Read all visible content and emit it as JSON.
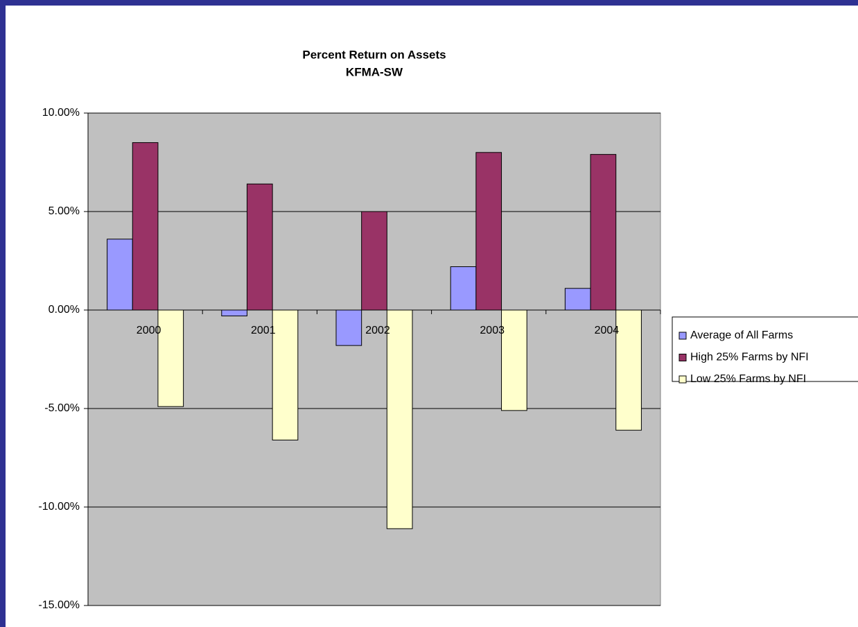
{
  "chart_data": {
    "type": "bar",
    "title": "Percent Return on Assets",
    "subtitle": "KFMA-SW",
    "categories": [
      "2000",
      "2001",
      "2002",
      "2003",
      "2004"
    ],
    "series": [
      {
        "name": "Average of All Farms",
        "color": "#9999ff",
        "values": [
          3.6,
          -0.3,
          -1.8,
          2.2,
          1.1
        ]
      },
      {
        "name": "High 25% Farms by NFI",
        "color": "#993366",
        "values": [
          8.5,
          6.4,
          5.0,
          8.0,
          7.9
        ]
      },
      {
        "name": "Low 25% Farms by NFI",
        "color": "#ffffcc",
        "values": [
          -4.9,
          -6.6,
          -11.1,
          -5.1,
          -6.1
        ]
      }
    ],
    "ylim": [
      -15,
      10
    ],
    "yticks": [
      {
        "value": -15,
        "label": "-15.00%"
      },
      {
        "value": -10,
        "label": "-10.00%"
      },
      {
        "value": -5,
        "label": "-5.00%"
      },
      {
        "value": 0,
        "label": "0.00%"
      },
      {
        "value": 5,
        "label": "5.00%"
      },
      {
        "value": 10,
        "label": "10.00%"
      }
    ],
    "grid": true,
    "legend": "right",
    "plot_background": "#c0c0c0"
  }
}
